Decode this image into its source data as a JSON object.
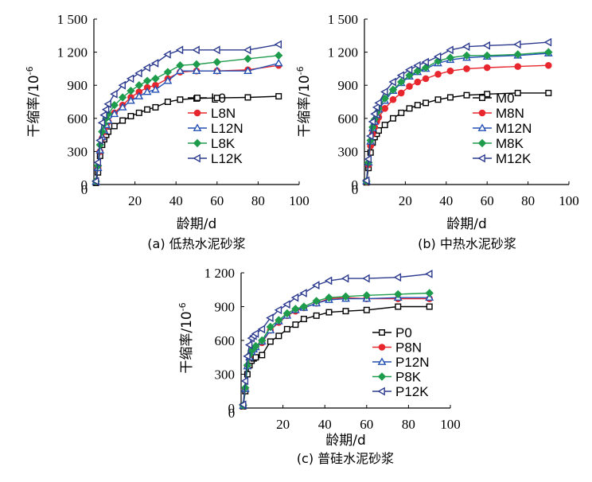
{
  "chart_data": [
    {
      "type": "line",
      "caption": "(a) 低热水泥砂浆",
      "xlabel": "龄期/d",
      "ylabel": "干缩率/10",
      "ylabel_exp": "-6",
      "xlim": [
        0,
        100
      ],
      "ylim": [
        0,
        1500
      ],
      "xticks": [
        "0",
        "20",
        "40",
        "60",
        "80",
        "100"
      ],
      "yticks": [
        "0",
        "300",
        "600",
        "900",
        "1 200",
        "1 500"
      ],
      "legend_position": "lower-right",
      "x": [
        1,
        2,
        3,
        4,
        5,
        6,
        7,
        10,
        14,
        18,
        22,
        26,
        30,
        36,
        42,
        50,
        60,
        75,
        90
      ],
      "series": [
        {
          "name": "L0",
          "color": "#000000",
          "marker": "square",
          "values": [
            15,
            110,
            260,
            360,
            410,
            450,
            480,
            530,
            580,
            620,
            650,
            680,
            700,
            750,
            770,
            780,
            785,
            790,
            800
          ]
        },
        {
          "name": "L8N",
          "color": "#e8262d",
          "marker": "circle",
          "values": [
            25,
            150,
            300,
            420,
            480,
            530,
            570,
            650,
            720,
            790,
            840,
            880,
            900,
            960,
            1020,
            1030,
            1030,
            1040,
            1080
          ]
        },
        {
          "name": "L12N",
          "color": "#2451b4",
          "marker": "triangle-up",
          "values": [
            25,
            150,
            310,
            430,
            490,
            540,
            580,
            640,
            700,
            760,
            800,
            840,
            860,
            940,
            1030,
            1030,
            1030,
            1030,
            1100
          ]
        },
        {
          "name": "L8K",
          "color": "#1e9c4c",
          "marker": "diamond",
          "values": [
            30,
            170,
            360,
            480,
            550,
            600,
            640,
            720,
            790,
            850,
            900,
            940,
            960,
            1020,
            1080,
            1090,
            1110,
            1140,
            1170
          ]
        },
        {
          "name": "L12K",
          "color": "#2b3a8e",
          "marker": "triangle-left",
          "values": [
            30,
            200,
            400,
            560,
            630,
            680,
            730,
            820,
            900,
            960,
            1010,
            1060,
            1100,
            1180,
            1220,
            1220,
            1220,
            1220,
            1270
          ]
        }
      ]
    },
    {
      "type": "line",
      "caption": "(b) 中热水泥砂浆",
      "xlabel": "龄期/d",
      "ylabel": "干缩率/10",
      "ylabel_exp": "-6",
      "xlim": [
        0,
        100
      ],
      "ylim": [
        0,
        1500
      ],
      "xticks": [
        "0",
        "20",
        "40",
        "60",
        "80",
        "100"
      ],
      "yticks": [
        "0",
        "300",
        "600",
        "900",
        "1 200",
        "1 500"
      ],
      "legend_position": "lower-right",
      "x": [
        1,
        2,
        3,
        4,
        5,
        6,
        7,
        10,
        14,
        18,
        22,
        26,
        30,
        36,
        42,
        50,
        60,
        75,
        90
      ],
      "series": [
        {
          "name": "M0",
          "color": "#000000",
          "marker": "square",
          "values": [
            20,
            150,
            290,
            380,
            430,
            460,
            490,
            540,
            600,
            650,
            690,
            720,
            740,
            770,
            790,
            810,
            820,
            830,
            830
          ]
        },
        {
          "name": "M8N",
          "color": "#e8262d",
          "marker": "circle",
          "values": [
            25,
            180,
            350,
            460,
            520,
            570,
            610,
            690,
            770,
            830,
            890,
            930,
            960,
            1000,
            1030,
            1050,
            1060,
            1070,
            1080
          ]
        },
        {
          "name": "M12N",
          "color": "#2451b4",
          "marker": "triangle-up",
          "values": [
            30,
            200,
            390,
            510,
            570,
            630,
            680,
            760,
            850,
            920,
            980,
            1020,
            1050,
            1100,
            1130,
            1150,
            1160,
            1170,
            1190
          ]
        },
        {
          "name": "M8K",
          "color": "#1e9c4c",
          "marker": "diamond",
          "values": [
            30,
            200,
            400,
            520,
            590,
            650,
            690,
            780,
            860,
            930,
            990,
            1030,
            1060,
            1120,
            1150,
            1170,
            1170,
            1180,
            1200
          ]
        },
        {
          "name": "M12K",
          "color": "#2b3a8e",
          "marker": "triangle-left",
          "values": [
            35,
            230,
            440,
            570,
            640,
            700,
            740,
            840,
            930,
            990,
            1040,
            1080,
            1110,
            1160,
            1220,
            1250,
            1260,
            1270,
            1290
          ]
        }
      ]
    },
    {
      "type": "line",
      "caption": "(c) 普硅水泥砂浆",
      "xlabel": "龄期/d",
      "ylabel": "干缩率/10",
      "ylabel_exp": "-6",
      "xlim": [
        0,
        100
      ],
      "ylim": [
        0,
        1200
      ],
      "xticks": [
        "0",
        "20",
        "40",
        "60",
        "80",
        "100"
      ],
      "yticks": [
        "0",
        "300",
        "600",
        "900",
        "1 200"
      ],
      "legend_position": "lower-right",
      "x": [
        1,
        2,
        3,
        4,
        5,
        6,
        7,
        10,
        14,
        18,
        22,
        26,
        30,
        36,
        42,
        50,
        60,
        75,
        90
      ],
      "series": [
        {
          "name": "P0",
          "color": "#000000",
          "marker": "square",
          "values": [
            15,
            150,
            300,
            380,
            420,
            440,
            450,
            470,
            590,
            640,
            700,
            740,
            790,
            820,
            850,
            860,
            870,
            900,
            900
          ]
        },
        {
          "name": "P8N",
          "color": "#e8262d",
          "marker": "circle",
          "values": [
            20,
            170,
            370,
            450,
            500,
            520,
            540,
            580,
            690,
            760,
            820,
            860,
            890,
            930,
            970,
            980,
            970,
            970,
            970
          ]
        },
        {
          "name": "P12N",
          "color": "#2451b4",
          "marker": "triangle-up",
          "values": [
            20,
            170,
            370,
            450,
            500,
            520,
            540,
            590,
            690,
            770,
            820,
            870,
            890,
            930,
            960,
            970,
            970,
            980,
            980
          ]
        },
        {
          "name": "P8K",
          "color": "#1e9c4c",
          "marker": "diamond",
          "values": [
            25,
            180,
            380,
            470,
            510,
            530,
            550,
            600,
            720,
            780,
            840,
            880,
            900,
            950,
            980,
            990,
            1000,
            1010,
            1020
          ]
        },
        {
          "name": "P12K",
          "color": "#2b3a8e",
          "marker": "triangle-left",
          "values": [
            30,
            240,
            460,
            560,
            620,
            640,
            660,
            700,
            800,
            870,
            920,
            980,
            1020,
            1090,
            1130,
            1150,
            1150,
            1160,
            1190
          ]
        }
      ]
    }
  ]
}
